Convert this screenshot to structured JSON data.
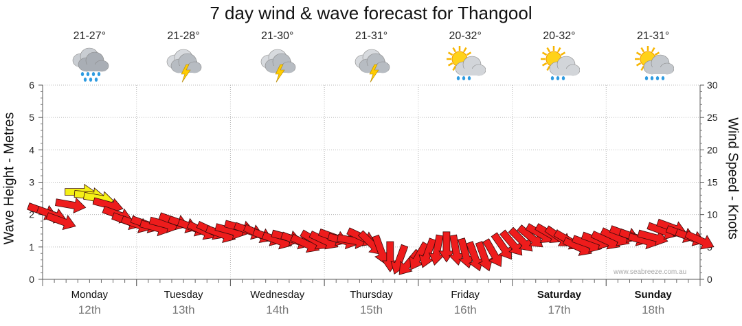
{
  "chart_data": {
    "type": "line",
    "title": "7 day wind & wave forecast for Thangool",
    "ylabel_left": "Wave Height - Metres",
    "ylabel_right": "Wind Speed - Knots",
    "ylim_left": [
      0,
      6
    ],
    "ylim_right": [
      0,
      30
    ],
    "yticks_left": [
      "0",
      "1",
      "2",
      "3",
      "4",
      "5",
      "6"
    ],
    "yticks_right": [
      "0",
      "5",
      "10",
      "15",
      "20",
      "25",
      "30"
    ],
    "grid": true,
    "days": [
      {
        "day": "Monday",
        "date": "12th",
        "temp": "21-27°",
        "icon": "rain-cloud-icon",
        "bold": false
      },
      {
        "day": "Tuesday",
        "date": "13th",
        "temp": "21-28°",
        "icon": "thunderstorm-icon",
        "bold": false
      },
      {
        "day": "Wednesday",
        "date": "14th",
        "temp": "21-30°",
        "icon": "thunderstorm-icon",
        "bold": false
      },
      {
        "day": "Thursday",
        "date": "15th",
        "temp": "21-31°",
        "icon": "thunderstorm-icon",
        "bold": false
      },
      {
        "day": "Friday",
        "date": "16th",
        "temp": "20-32°",
        "icon": "sun-cloud-shower-icon",
        "bold": false
      },
      {
        "day": "Saturday",
        "date": "17th",
        "temp": "20-32°",
        "icon": "sun-cloud-shower-icon",
        "bold": true
      },
      {
        "day": "Sunday",
        "date": "18th",
        "temp": "21-31°",
        "icon": "sun-cloud-rain-icon",
        "bold": true
      }
    ],
    "wind_series": {
      "name": "Wind Speed (knots)",
      "unit": "knots",
      "x_days": [
        0.0,
        0.1,
        0.2,
        0.3,
        0.4,
        0.5,
        0.6,
        0.7,
        0.8,
        0.9,
        1.0,
        1.1,
        1.2,
        1.3,
        1.4,
        1.5,
        1.6,
        1.7,
        1.8,
        1.9,
        2.0,
        2.1,
        2.2,
        2.3,
        2.4,
        2.5,
        2.6,
        2.7,
        2.8,
        2.9,
        3.0,
        3.1,
        3.2,
        3.3,
        3.4,
        3.5,
        3.6,
        3.7,
        3.8,
        3.9,
        4.0,
        4.1,
        4.2,
        4.3,
        4.4,
        4.5,
        4.6,
        4.7,
        4.8,
        4.9,
        5.0,
        5.1,
        5.2,
        5.3,
        5.4,
        5.5,
        5.6,
        5.7,
        5.8,
        5.9,
        6.0,
        6.1,
        6.2,
        6.3,
        6.4,
        6.5,
        6.6,
        6.7,
        6.8,
        6.9,
        7.0
      ],
      "values": [
        10.5,
        10.0,
        9.0,
        11.5,
        13.5,
        13.0,
        12.5,
        11.5,
        10.0,
        9.0,
        8.5,
        8.5,
        8.0,
        8.5,
        9.0,
        8.5,
        8.0,
        7.5,
        7.5,
        7.0,
        7.5,
        8.0,
        7.5,
        7.0,
        6.5,
        6.0,
        6.5,
        6.0,
        5.5,
        6.0,
        6.0,
        6.5,
        6.0,
        6.0,
        6.5,
        5.5,
        4.5,
        3.5,
        3.0,
        2.5,
        3.5,
        4.0,
        4.5,
        5.0,
        4.5,
        4.0,
        3.5,
        3.5,
        4.0,
        5.0,
        5.5,
        6.0,
        6.5,
        7.0,
        7.0,
        6.5,
        6.0,
        5.0,
        5.5,
        6.0,
        6.0,
        6.5,
        7.0,
        6.5,
        6.0,
        6.5,
        7.5,
        8.0,
        7.0,
        6.5,
        6.0
      ],
      "direction_deg": [
        110,
        110,
        110,
        100,
        90,
        95,
        100,
        105,
        110,
        110,
        110,
        110,
        105,
        105,
        110,
        110,
        110,
        115,
        115,
        110,
        105,
        105,
        110,
        115,
        110,
        110,
        105,
        110,
        115,
        120,
        115,
        110,
        105,
        100,
        115,
        135,
        160,
        180,
        200,
        220,
        210,
        200,
        190,
        180,
        170,
        165,
        160,
        160,
        150,
        145,
        140,
        135,
        130,
        120,
        120,
        125,
        120,
        115,
        110,
        110,
        115,
        115,
        110,
        110,
        105,
        105,
        110,
        110,
        110,
        110,
        115
      ],
      "highlight_threshold_knots": 12.5,
      "color_normal": "#ee1c1c",
      "color_high": "#f4f016"
    },
    "watermark": "www.seabreeze.com.au"
  }
}
